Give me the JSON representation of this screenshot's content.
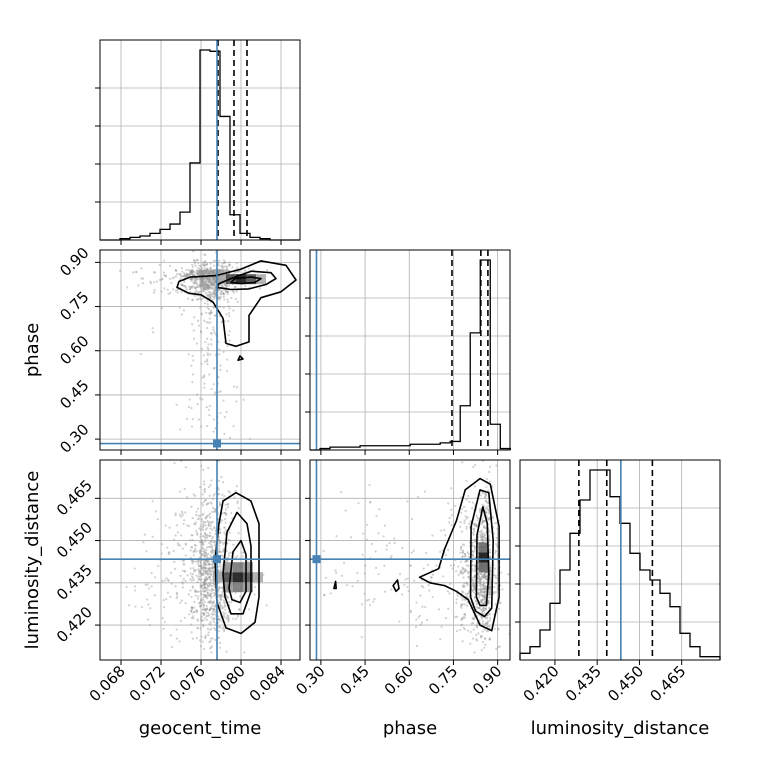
{
  "chart_data": {
    "type": "corner",
    "parameters": [
      "geocent_time",
      "phase",
      "luminosity_distance"
    ],
    "truths": {
      "geocent_time": 0.0776,
      "phase": 0.285,
      "luminosity_distance": 0.4434
    },
    "quantiles": {
      "geocent_time": [
        0.0777,
        0.0793,
        0.0806
      ],
      "phase": [
        0.745,
        0.843,
        0.867
      ],
      "luminosity_distance": [
        0.4285,
        0.4384,
        0.4546
      ]
    },
    "axes": {
      "geocent_time": {
        "label": "geocent_time",
        "range": [
          0.0659,
          0.0859
        ],
        "ticks": [
          "0.068",
          "0.072",
          "0.076",
          "0.080",
          "0.084"
        ]
      },
      "phase": {
        "label": "phase",
        "range": [
          0.263,
          0.942
        ],
        "ticks": [
          "0.30",
          "0.45",
          "0.60",
          "0.75",
          "0.90"
        ]
      },
      "luminosity_distance": {
        "label": "luminosity_distance",
        "range": [
          0.4076,
          0.4786
        ],
        "ticks": [
          "0.420",
          "0.435",
          "0.450",
          "0.465"
        ]
      }
    },
    "histograms": {
      "geocent_time": {
        "bin_start": 0.0659,
        "bin_width": 0.001,
        "counts": [
          0,
          0,
          1,
          2,
          3,
          5,
          8,
          12,
          21,
          58,
          143,
          142,
          93,
          19,
          5,
          2,
          1,
          0,
          0,
          0
        ]
      },
      "phase": {
        "bin_start": 0.263,
        "bin_width": 0.034,
        "counts": [
          0,
          1,
          2,
          2,
          2,
          3,
          3,
          3,
          3,
          3,
          4,
          4,
          4,
          5,
          6,
          31,
          82,
          133,
          18,
          1
        ]
      },
      "luminosity_distance": {
        "bin_start": 0.4076,
        "bin_width": 0.00355,
        "counts": [
          2,
          4,
          9,
          17,
          27,
          38,
          48,
          57,
          57,
          49,
          41,
          32,
          27,
          24,
          20,
          16,
          8,
          4,
          1,
          1
        ]
      }
    },
    "contours": {
      "phase|geocent_time": [
        [
          [
            0.0736,
            0.815
          ],
          [
            0.0738,
            0.835
          ],
          [
            0.0749,
            0.85
          ],
          [
            0.0775,
            0.855
          ],
          [
            0.08,
            0.877
          ],
          [
            0.082,
            0.905
          ],
          [
            0.0845,
            0.89
          ],
          [
            0.0855,
            0.84
          ],
          [
            0.084,
            0.8
          ],
          [
            0.082,
            0.78
          ],
          [
            0.0808,
            0.72
          ],
          [
            0.0808,
            0.63
          ],
          [
            0.0795,
            0.615
          ],
          [
            0.0785,
            0.625
          ],
          [
            0.0782,
            0.71
          ],
          [
            0.0772,
            0.765
          ],
          [
            0.076,
            0.79
          ],
          [
            0.0748,
            0.795
          ]
        ],
        [
          [
            0.0776,
            0.815
          ],
          [
            0.0778,
            0.828
          ],
          [
            0.079,
            0.845
          ],
          [
            0.081,
            0.87
          ],
          [
            0.083,
            0.865
          ],
          [
            0.0835,
            0.845
          ],
          [
            0.0825,
            0.825
          ],
          [
            0.0808,
            0.81
          ],
          [
            0.079,
            0.808
          ]
        ],
        [
          [
            0.079,
            0.832
          ],
          [
            0.0794,
            0.845
          ],
          [
            0.081,
            0.85
          ],
          [
            0.082,
            0.845
          ],
          [
            0.0814,
            0.832
          ],
          [
            0.08,
            0.828
          ]
        ],
        [
          [
            0.0797,
            0.568
          ],
          [
            0.0799,
            0.582
          ],
          [
            0.0802,
            0.572
          ]
        ]
      ],
      "luminosity_distance|geocent_time": [
        [
          [
            0.0774,
            0.443
          ],
          [
            0.0778,
            0.456
          ],
          [
            0.0782,
            0.464
          ],
          [
            0.0795,
            0.467
          ],
          [
            0.081,
            0.464
          ],
          [
            0.0818,
            0.456
          ],
          [
            0.0818,
            0.43
          ],
          [
            0.0814,
            0.421
          ],
          [
            0.08,
            0.417
          ],
          [
            0.0785,
            0.419
          ],
          [
            0.0776,
            0.428
          ]
        ],
        [
          [
            0.0782,
            0.438
          ],
          [
            0.0786,
            0.453
          ],
          [
            0.0796,
            0.46
          ],
          [
            0.0806,
            0.456
          ],
          [
            0.081,
            0.448
          ],
          [
            0.081,
            0.432
          ],
          [
            0.0802,
            0.424
          ],
          [
            0.079,
            0.424
          ],
          [
            0.0784,
            0.43
          ]
        ],
        [
          [
            0.0788,
            0.433
          ],
          [
            0.0792,
            0.446
          ],
          [
            0.08,
            0.45
          ],
          [
            0.0805,
            0.445
          ],
          [
            0.0805,
            0.432
          ],
          [
            0.0799,
            0.428
          ],
          [
            0.0791,
            0.429
          ]
        ]
      ],
      "luminosity_distance|phase": [
        [
          [
            0.635,
            0.437
          ],
          [
            0.7,
            0.44
          ],
          [
            0.72,
            0.447
          ],
          [
            0.76,
            0.457
          ],
          [
            0.79,
            0.468
          ],
          [
            0.84,
            0.472
          ],
          [
            0.875,
            0.47
          ],
          [
            0.905,
            0.455
          ],
          [
            0.905,
            0.43
          ],
          [
            0.88,
            0.418
          ],
          [
            0.84,
            0.42
          ],
          [
            0.8,
            0.429
          ],
          [
            0.76,
            0.432
          ],
          [
            0.72,
            0.434
          ],
          [
            0.67,
            0.435
          ]
        ],
        [
          [
            0.808,
            0.43
          ],
          [
            0.81,
            0.455
          ],
          [
            0.84,
            0.468
          ],
          [
            0.87,
            0.467
          ],
          [
            0.885,
            0.45
          ],
          [
            0.88,
            0.426
          ],
          [
            0.855,
            0.423
          ],
          [
            0.825,
            0.425
          ]
        ],
        [
          [
            0.828,
            0.43
          ],
          [
            0.83,
            0.452
          ],
          [
            0.85,
            0.462
          ],
          [
            0.865,
            0.456
          ],
          [
            0.87,
            0.438
          ],
          [
            0.862,
            0.427
          ],
          [
            0.84,
            0.427
          ]
        ],
        [
          [
            0.344,
            0.433
          ],
          [
            0.35,
            0.4355
          ],
          [
            0.352,
            0.433
          ]
        ],
        [
          [
            0.545,
            0.434
          ],
          [
            0.56,
            0.436
          ],
          [
            0.565,
            0.433
          ],
          [
            0.555,
            0.432
          ]
        ]
      ]
    },
    "density_peaks": {
      "phase|geocent_time": [
        [
          0.08,
          0.843,
          0.6,
          0.02
        ]
      ],
      "luminosity_distance|geocent_time": [
        [
          0.0797,
          0.437,
          0.6,
          0.009
        ]
      ],
      "luminosity_distance|phase": [
        [
          0.852,
          0.444,
          0.045,
          0.01
        ]
      ]
    },
    "colors": {
      "truth": "#4682b4",
      "line": "#000000",
      "grid": "#b0b0b0"
    },
    "grid": true
  }
}
